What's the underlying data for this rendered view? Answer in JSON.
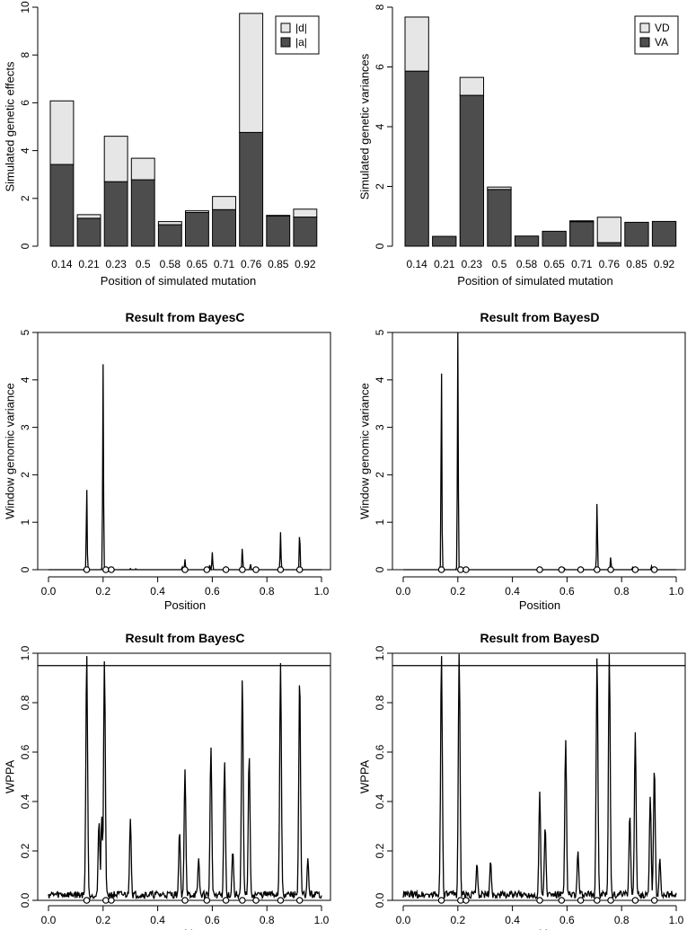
{
  "chart_data": [
    {
      "type": "bar",
      "stacked": true,
      "title": "",
      "xlabel": "Position of simulated mutation",
      "ylabel": "Simulated genetic effects",
      "categories": [
        "0.14",
        "0.21",
        "0.23",
        "0.5",
        "0.58",
        "0.65",
        "0.71",
        "0.76",
        "0.85",
        "0.92"
      ],
      "series": [
        {
          "name": "|a|",
          "color": "#4d4d4d",
          "values": [
            3.42,
            1.17,
            2.7,
            2.78,
            0.9,
            1.41,
            1.53,
            4.76,
            1.27,
            1.22
          ]
        },
        {
          "name": "|d|",
          "color": "#e6e6e6",
          "values": [
            2.66,
            0.15,
            1.9,
            0.9,
            0.13,
            0.07,
            0.55,
            4.98,
            0.02,
            0.33
          ]
        }
      ],
      "legend": [
        "|d|",
        "|a|"
      ],
      "ylim": [
        0,
        10
      ],
      "yticks": [
        0,
        2,
        4,
        6,
        8,
        10
      ],
      "legend_position": "top-right"
    },
    {
      "type": "bar",
      "stacked": true,
      "title": "",
      "xlabel": "Position of simulated mutation",
      "ylabel": "Simulated genetic variances",
      "categories": [
        "0.14",
        "0.21",
        "0.23",
        "0.5",
        "0.58",
        "0.65",
        "0.71",
        "0.76",
        "0.85",
        "0.92"
      ],
      "series": [
        {
          "name": "VA",
          "color": "#4d4d4d",
          "values": [
            5.86,
            0.33,
            5.05,
            1.9,
            0.34,
            0.5,
            0.82,
            0.12,
            0.8,
            0.83
          ]
        },
        {
          "name": "VD",
          "color": "#e6e6e6",
          "values": [
            1.81,
            0.0,
            0.6,
            0.08,
            0.0,
            0.0,
            0.03,
            0.85,
            0.0,
            0.0
          ]
        }
      ],
      "legend": [
        "VD",
        "VA"
      ],
      "ylim": [
        0,
        8
      ],
      "yticks": [
        0,
        2,
        4,
        6,
        8
      ],
      "legend_position": "top-right"
    },
    {
      "type": "line",
      "title": "Result from BayesC",
      "xlabel": "Position",
      "ylabel": "Window genomic variance",
      "xlim": [
        0,
        1
      ],
      "ylim": [
        0,
        5
      ],
      "xticks": [
        0.0,
        0.2,
        0.4,
        0.6,
        0.8,
        1.0
      ],
      "xtick_labels": [
        "0.0",
        "0.2",
        "0.4",
        "0.6",
        "0.8",
        "1.0"
      ],
      "yticks": [
        0,
        1,
        2,
        3,
        4,
        5
      ],
      "peaks": [
        [
          0.14,
          1.76
        ],
        [
          0.2,
          4.33
        ],
        [
          0.3,
          0.02
        ],
        [
          0.32,
          0.02
        ],
        [
          0.49,
          0.06
        ],
        [
          0.5,
          0.22
        ],
        [
          0.59,
          0.1
        ],
        [
          0.6,
          0.37
        ],
        [
          0.65,
          0.05
        ],
        [
          0.71,
          0.46
        ],
        [
          0.74,
          0.12
        ],
        [
          0.76,
          0.04
        ],
        [
          0.85,
          0.79
        ],
        [
          0.92,
          0.83
        ]
      ],
      "markers": [
        0.14,
        0.21,
        0.23,
        0.5,
        0.58,
        0.65,
        0.71,
        0.76,
        0.85,
        0.92
      ]
    },
    {
      "type": "line",
      "title": "Result from BayesD",
      "xlabel": "Position",
      "ylabel": "Window genomic variance",
      "xlim": [
        0,
        1
      ],
      "ylim": [
        0,
        5
      ],
      "xticks": [
        0.0,
        0.2,
        0.4,
        0.6,
        0.8,
        1.0
      ],
      "xtick_labels": [
        "0.0",
        "0.2",
        "0.4",
        "0.6",
        "0.8",
        "1.0"
      ],
      "yticks": [
        0,
        1,
        2,
        3,
        4,
        5
      ],
      "peaks": [
        [
          0.14,
          4.33
        ],
        [
          0.2,
          5.13
        ],
        [
          0.5,
          0.04
        ],
        [
          0.59,
          0.03
        ],
        [
          0.71,
          1.45
        ],
        [
          0.76,
          0.27
        ],
        [
          0.84,
          0.05
        ],
        [
          0.91,
          0.08
        ]
      ],
      "markers": [
        0.14,
        0.21,
        0.23,
        0.5,
        0.58,
        0.65,
        0.71,
        0.76,
        0.85,
        0.92
      ]
    },
    {
      "type": "line",
      "title": "Result from BayesC",
      "xlabel": "Position",
      "ylabel": "WPPA",
      "xlim": [
        0,
        1
      ],
      "ylim": [
        0,
        1
      ],
      "xticks": [
        0.0,
        0.2,
        0.4,
        0.6,
        0.8,
        1.0
      ],
      "xtick_labels": [
        "0.0",
        "0.2",
        "0.4",
        "0.6",
        "0.8",
        "1.0"
      ],
      "yticks": [
        0,
        0.2,
        0.4,
        0.6,
        0.8,
        1.0
      ],
      "ytick_labels": [
        "0.0",
        "0.2",
        "0.4",
        "0.6",
        "0.8",
        "1.0"
      ],
      "threshold": 0.95,
      "peaks": [
        [
          0.14,
          1.0
        ],
        [
          0.185,
          0.32
        ],
        [
          0.195,
          0.34
        ],
        [
          0.205,
          0.97
        ],
        [
          0.3,
          0.33
        ],
        [
          0.48,
          0.28
        ],
        [
          0.5,
          0.53
        ],
        [
          0.55,
          0.17
        ],
        [
          0.595,
          0.62
        ],
        [
          0.645,
          0.56
        ],
        [
          0.675,
          0.2
        ],
        [
          0.71,
          0.9
        ],
        [
          0.735,
          0.59
        ],
        [
          0.85,
          0.96
        ],
        [
          0.92,
          0.91
        ],
        [
          0.95,
          0.17
        ]
      ],
      "markers": [
        0.14,
        0.21,
        0.23,
        0.5,
        0.58,
        0.65,
        0.71,
        0.76,
        0.85,
        0.92
      ]
    },
    {
      "type": "line",
      "title": "Result from BayesD",
      "xlabel": "Position",
      "ylabel": "WPPA",
      "xlim": [
        0,
        1
      ],
      "ylim": [
        0,
        1
      ],
      "xticks": [
        0.0,
        0.2,
        0.4,
        0.6,
        0.8,
        1.0
      ],
      "xtick_labels": [
        "0.0",
        "0.2",
        "0.4",
        "0.6",
        "0.8",
        "1.0"
      ],
      "yticks": [
        0,
        0.2,
        0.4,
        0.6,
        0.8,
        1.0
      ],
      "ytick_labels": [
        "0.0",
        "0.2",
        "0.4",
        "0.6",
        "0.8",
        "1.0"
      ],
      "threshold": 0.95,
      "peaks": [
        [
          0.14,
          1.0
        ],
        [
          0.205,
          1.0
        ],
        [
          0.27,
          0.15
        ],
        [
          0.32,
          0.16
        ],
        [
          0.5,
          0.44
        ],
        [
          0.52,
          0.3
        ],
        [
          0.595,
          0.65
        ],
        [
          0.64,
          0.2
        ],
        [
          0.71,
          0.99
        ],
        [
          0.755,
          1.0
        ],
        [
          0.83,
          0.35
        ],
        [
          0.85,
          0.68
        ],
        [
          0.905,
          0.42
        ],
        [
          0.92,
          0.54
        ],
        [
          0.94,
          0.17
        ]
      ],
      "markers": [
        0.14,
        0.21,
        0.23,
        0.5,
        0.58,
        0.65,
        0.71,
        0.76,
        0.85,
        0.92
      ]
    }
  ]
}
